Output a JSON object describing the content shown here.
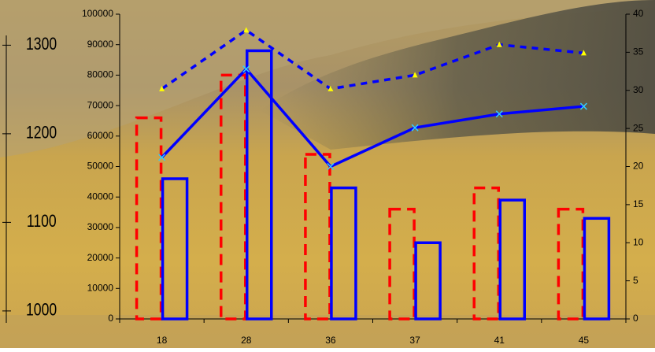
{
  "chart_data": {
    "type": "bar",
    "categories": [
      "18",
      "28",
      "36",
      "37",
      "41",
      "45"
    ],
    "series": [
      {
        "type": "bar",
        "color": "#ff0000",
        "style": "dashed",
        "values": [
          66000,
          80000,
          54000,
          36000,
          43000,
          36000
        ]
      },
      {
        "type": "bar",
        "color": "#0000ff",
        "style": "solid",
        "values": [
          46000,
          88000,
          43000,
          25000,
          39000,
          33000
        ]
      },
      {
        "type": "line",
        "axis": "y2",
        "color": "#0000ff",
        "style": "solid",
        "marker": "x",
        "marker_color": "#33ccff",
        "values": [
          21.2,
          32.8,
          20,
          25.1,
          26.9,
          27.9
        ]
      },
      {
        "type": "line",
        "axis": "y2",
        "color": "#0000ff",
        "style": "dotted",
        "marker": "triangle",
        "marker_color": "#ffff00",
        "values": [
          30.2,
          37.9,
          30.2,
          32,
          36,
          34.9
        ]
      }
    ],
    "ylim": [
      0,
      100000
    ],
    "yticks": [
      0,
      10000,
      20000,
      30000,
      40000,
      50000,
      60000,
      70000,
      80000,
      90000,
      100000
    ],
    "y2lim": [
      0,
      40
    ],
    "y2ticks": [
      0,
      5,
      10,
      15,
      20,
      25,
      30,
      35,
      40
    ],
    "y3lim": [
      991,
      1335
    ],
    "y3ticks": [
      1000,
      1100,
      1200,
      1300
    ]
  }
}
